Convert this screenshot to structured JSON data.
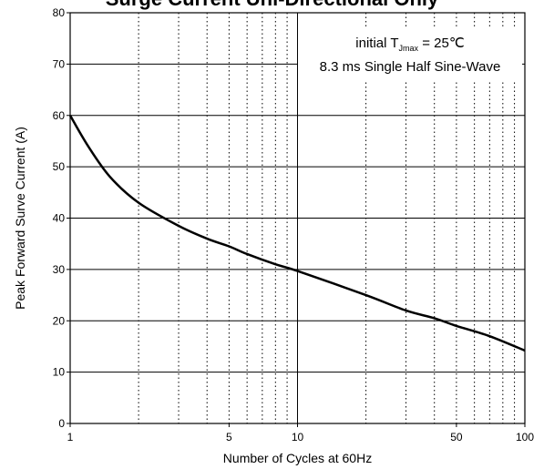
{
  "chart_data": {
    "type": "line",
    "title": "Surge Current Uni-Directional Only",
    "xlabel": "Number of Cycles at 60Hz",
    "ylabel": "Peak Forward Surve Current (A)",
    "x_scale": "log",
    "xlim": [
      1,
      100
    ],
    "ylim": [
      0,
      80
    ],
    "x_tick_labels": [
      "1",
      "5",
      "10",
      "50",
      "100"
    ],
    "x_tick_values": [
      1,
      5,
      10,
      50,
      100
    ],
    "y_ticks": [
      0,
      10,
      20,
      30,
      40,
      50,
      60,
      70,
      80
    ],
    "grid": {
      "horizontal": "solid",
      "vertical": "dotted-minor"
    },
    "annotation": {
      "line1_prefix": "initial T",
      "line1_subscript": "Jmax",
      "line1_suffix": " = 25℃",
      "line2": "8.3 ms Single Half Sine-Wave"
    },
    "series": [
      {
        "x": [
          1,
          1.2,
          1.5,
          2,
          3,
          4,
          5,
          6,
          8,
          10,
          20,
          30,
          40,
          50,
          70,
          100
        ],
        "y": [
          60,
          54,
          48,
          43,
          38.5,
          36,
          34.5,
          33,
          31,
          29.7,
          25,
          22,
          20.5,
          19,
          17,
          14.2
        ]
      }
    ]
  }
}
